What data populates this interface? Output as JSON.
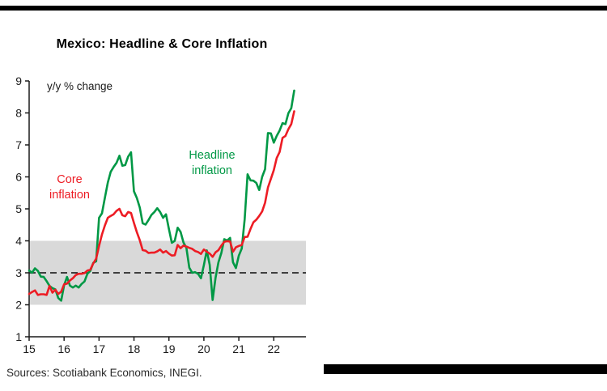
{
  "footer": {
    "sources": "Sources: Scotiabank Economics, INEGI."
  },
  "chart_data": {
    "type": "line",
    "title": "Mexico: Headline & Core Inflation",
    "annotation": "y/y % change",
    "grid": false,
    "legend_position": "inline-annotations",
    "x_axis": {
      "tick_labels": [
        "15",
        "16",
        "17",
        "18",
        "19",
        "20",
        "21",
        "22"
      ],
      "tick_years": [
        2015,
        2016,
        2017,
        2018,
        2019,
        2020,
        2021,
        2022
      ],
      "range": [
        2015,
        2022.92
      ],
      "frequency": "monthly",
      "start_year": 2015
    },
    "y_axis": {
      "ticks": [
        1,
        2,
        3,
        4,
        5,
        6,
        7,
        8,
        9
      ],
      "range": [
        1,
        9
      ]
    },
    "target_band": {
      "from": 2,
      "to": 4,
      "color": "#D9D9D9"
    },
    "target_line": {
      "value": 3,
      "style": "dashed",
      "color": "#3F3F3F"
    },
    "series": [
      {
        "name": "Headline inflation",
        "label_lines": [
          "Headline",
          "inflation"
        ],
        "color": "#009845",
        "start": "2015-01",
        "frequency": "monthly",
        "values": [
          3.07,
          3.0,
          3.14,
          3.06,
          2.88,
          2.87,
          2.74,
          2.59,
          2.52,
          2.48,
          2.21,
          2.13,
          2.61,
          2.87,
          2.6,
          2.54,
          2.6,
          2.54,
          2.65,
          2.73,
          2.97,
          3.06,
          3.31,
          3.36,
          4.72,
          4.86,
          5.35,
          5.82,
          6.16,
          6.31,
          6.44,
          6.66,
          6.35,
          6.37,
          6.63,
          6.77,
          5.55,
          5.34,
          5.04,
          4.55,
          4.51,
          4.65,
          4.81,
          4.9,
          5.02,
          4.9,
          4.72,
          4.83,
          4.37,
          3.94,
          4.0,
          4.41,
          4.28,
          3.95,
          3.78,
          3.16,
          3.0,
          3.02,
          2.97,
          2.83,
          3.24,
          3.7,
          3.25,
          2.15,
          2.84,
          3.33,
          3.62,
          4.05,
          4.01,
          4.09,
          3.33,
          3.15,
          3.54,
          3.76,
          4.67,
          6.08,
          5.89,
          5.88,
          5.81,
          5.59,
          6.0,
          6.24,
          7.37,
          7.36,
          7.07,
          7.28,
          7.45,
          7.68,
          7.65,
          7.99,
          8.15,
          8.7
        ]
      },
      {
        "name": "Core inflation",
        "label_lines": [
          "Core",
          "inflation"
        ],
        "color": "#ED1C24",
        "start": "2015-01",
        "frequency": "monthly",
        "values": [
          2.34,
          2.4,
          2.45,
          2.31,
          2.33,
          2.33,
          2.31,
          2.59,
          2.38,
          2.47,
          2.34,
          2.41,
          2.64,
          2.66,
          2.76,
          2.83,
          2.93,
          2.97,
          2.97,
          2.99,
          3.07,
          3.1,
          3.29,
          3.44,
          3.84,
          4.2,
          4.48,
          4.72,
          4.78,
          4.83,
          4.94,
          5.0,
          4.8,
          4.77,
          4.9,
          4.87,
          4.56,
          4.27,
          4.02,
          3.71,
          3.69,
          3.62,
          3.63,
          3.63,
          3.67,
          3.73,
          3.63,
          3.68,
          3.6,
          3.54,
          3.55,
          3.87,
          3.77,
          3.85,
          3.82,
          3.78,
          3.75,
          3.68,
          3.65,
          3.59,
          3.73,
          3.66,
          3.6,
          3.5,
          3.64,
          3.71,
          3.85,
          3.97,
          3.99,
          3.98,
          3.66,
          3.8,
          3.84,
          3.87,
          4.12,
          4.13,
          4.37,
          4.58,
          4.66,
          4.78,
          4.92,
          5.19,
          5.67,
          5.94,
          6.21,
          6.59,
          6.78,
          7.22,
          7.28,
          7.49,
          7.65,
          8.05
        ]
      }
    ]
  }
}
